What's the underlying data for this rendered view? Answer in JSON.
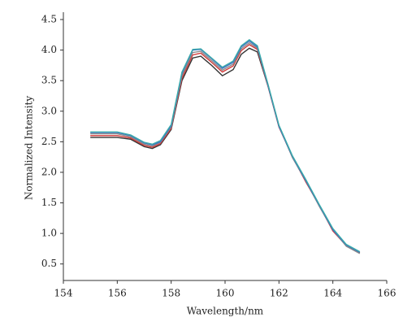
{
  "chart_data": {
    "type": "line",
    "x_label": "Wavelength/nm",
    "y_label": "Normalized Intensity",
    "x": [
      155,
      156,
      156.5,
      157,
      157.3,
      157.6,
      158,
      158.4,
      158.8,
      159.1,
      159.5,
      159.9,
      160.3,
      160.6,
      160.9,
      161.2,
      161.6,
      162,
      162.5,
      163,
      163.5,
      164,
      164.5,
      165
    ],
    "series": [
      {
        "name": "black",
        "color": "#333333",
        "values": [
          2.57,
          2.57,
          2.54,
          2.42,
          2.39,
          2.45,
          2.7,
          3.5,
          3.87,
          3.9,
          3.75,
          3.58,
          3.68,
          3.93,
          4.03,
          3.97,
          3.4,
          2.75,
          2.25,
          1.85,
          1.45,
          1.05,
          0.8,
          0.68
        ]
      },
      {
        "name": "red",
        "color": "#d23a3a",
        "values": [
          2.6,
          2.6,
          2.56,
          2.44,
          2.41,
          2.47,
          2.72,
          3.54,
          3.92,
          3.95,
          3.8,
          3.64,
          3.74,
          3.99,
          4.09,
          4.01,
          3.4,
          2.74,
          2.26,
          1.84,
          1.46,
          1.04,
          0.8,
          0.68
        ]
      },
      {
        "name": "gray",
        "color": "#8a8a8a",
        "values": [
          2.63,
          2.63,
          2.58,
          2.46,
          2.43,
          2.49,
          2.74,
          3.58,
          3.96,
          3.98,
          3.83,
          3.67,
          3.77,
          4.02,
          4.12,
          4.03,
          3.42,
          2.76,
          2.24,
          1.86,
          1.44,
          1.06,
          0.79,
          0.67
        ]
      },
      {
        "name": "blue",
        "color": "#3a6fc4",
        "values": [
          2.65,
          2.65,
          2.6,
          2.48,
          2.45,
          2.5,
          2.76,
          3.62,
          4.0,
          4.01,
          3.86,
          3.7,
          3.8,
          4.05,
          4.15,
          4.05,
          3.41,
          2.75,
          2.26,
          1.86,
          1.46,
          1.06,
          0.81,
          0.69
        ]
      },
      {
        "name": "teal",
        "color": "#3aaaaa",
        "values": [
          2.66,
          2.66,
          2.61,
          2.49,
          2.46,
          2.52,
          2.78,
          3.64,
          4.01,
          4.02,
          3.87,
          3.72,
          3.82,
          4.07,
          4.17,
          4.07,
          3.43,
          2.77,
          2.27,
          1.88,
          1.47,
          1.08,
          0.82,
          0.7
        ]
      }
    ],
    "xlim": [
      154,
      166
    ],
    "xticks": [
      154,
      156,
      158,
      160,
      162,
      164,
      166
    ],
    "ylim": [
      0.23,
      4.62
    ],
    "yticks": [
      0.5,
      {
        "value": 1,
        "label": "1.0"
      },
      1.5,
      {
        "value": 2,
        "label": "2.0"
      },
      2.5,
      {
        "value": 3,
        "label": "3.0"
      },
      3.5,
      {
        "value": 4,
        "label": "4.0"
      },
      4.5
    ]
  }
}
